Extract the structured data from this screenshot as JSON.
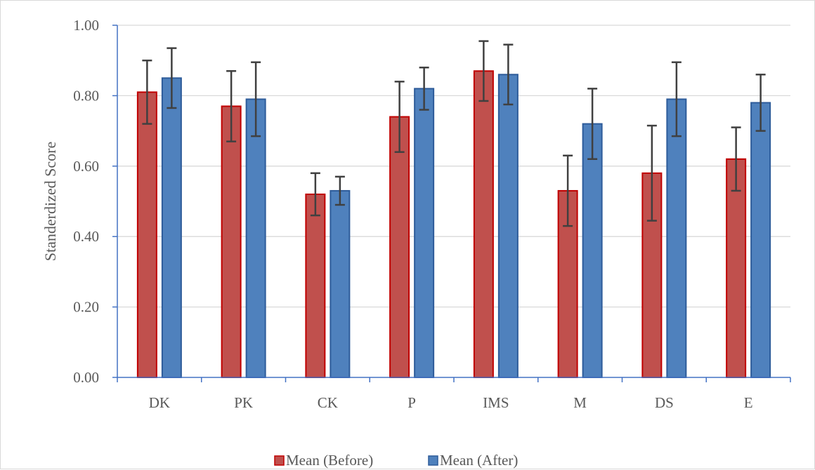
{
  "chart_data": {
    "type": "bar",
    "title": "",
    "xlabel": "",
    "ylabel": "Standerdized Score",
    "ylim": [
      0,
      1
    ],
    "yticks": [
      "0.00",
      "0.20",
      "0.40",
      "0.60",
      "0.80",
      "1.00"
    ],
    "grid": true,
    "legend_position": "bottom",
    "categories": [
      "DK",
      "PK",
      "CK",
      "P",
      "IMS",
      "M",
      "DS",
      "E"
    ],
    "series": [
      {
        "name": "Mean (Before)",
        "color": "#c0504d",
        "stroke": "#c00000",
        "values": [
          0.81,
          0.77,
          0.52,
          0.74,
          0.87,
          0.53,
          0.58,
          0.62
        ],
        "error": [
          0.09,
          0.1,
          0.06,
          0.1,
          0.085,
          0.1,
          0.135,
          0.09
        ]
      },
      {
        "name": "Mean (After)",
        "color": "#4f81bd",
        "stroke": "#2e5c9a",
        "values": [
          0.85,
          0.79,
          0.53,
          0.82,
          0.86,
          0.72,
          0.79,
          0.78
        ],
        "error": [
          0.085,
          0.105,
          0.04,
          0.06,
          0.085,
          0.1,
          0.105,
          0.08
        ]
      }
    ]
  }
}
